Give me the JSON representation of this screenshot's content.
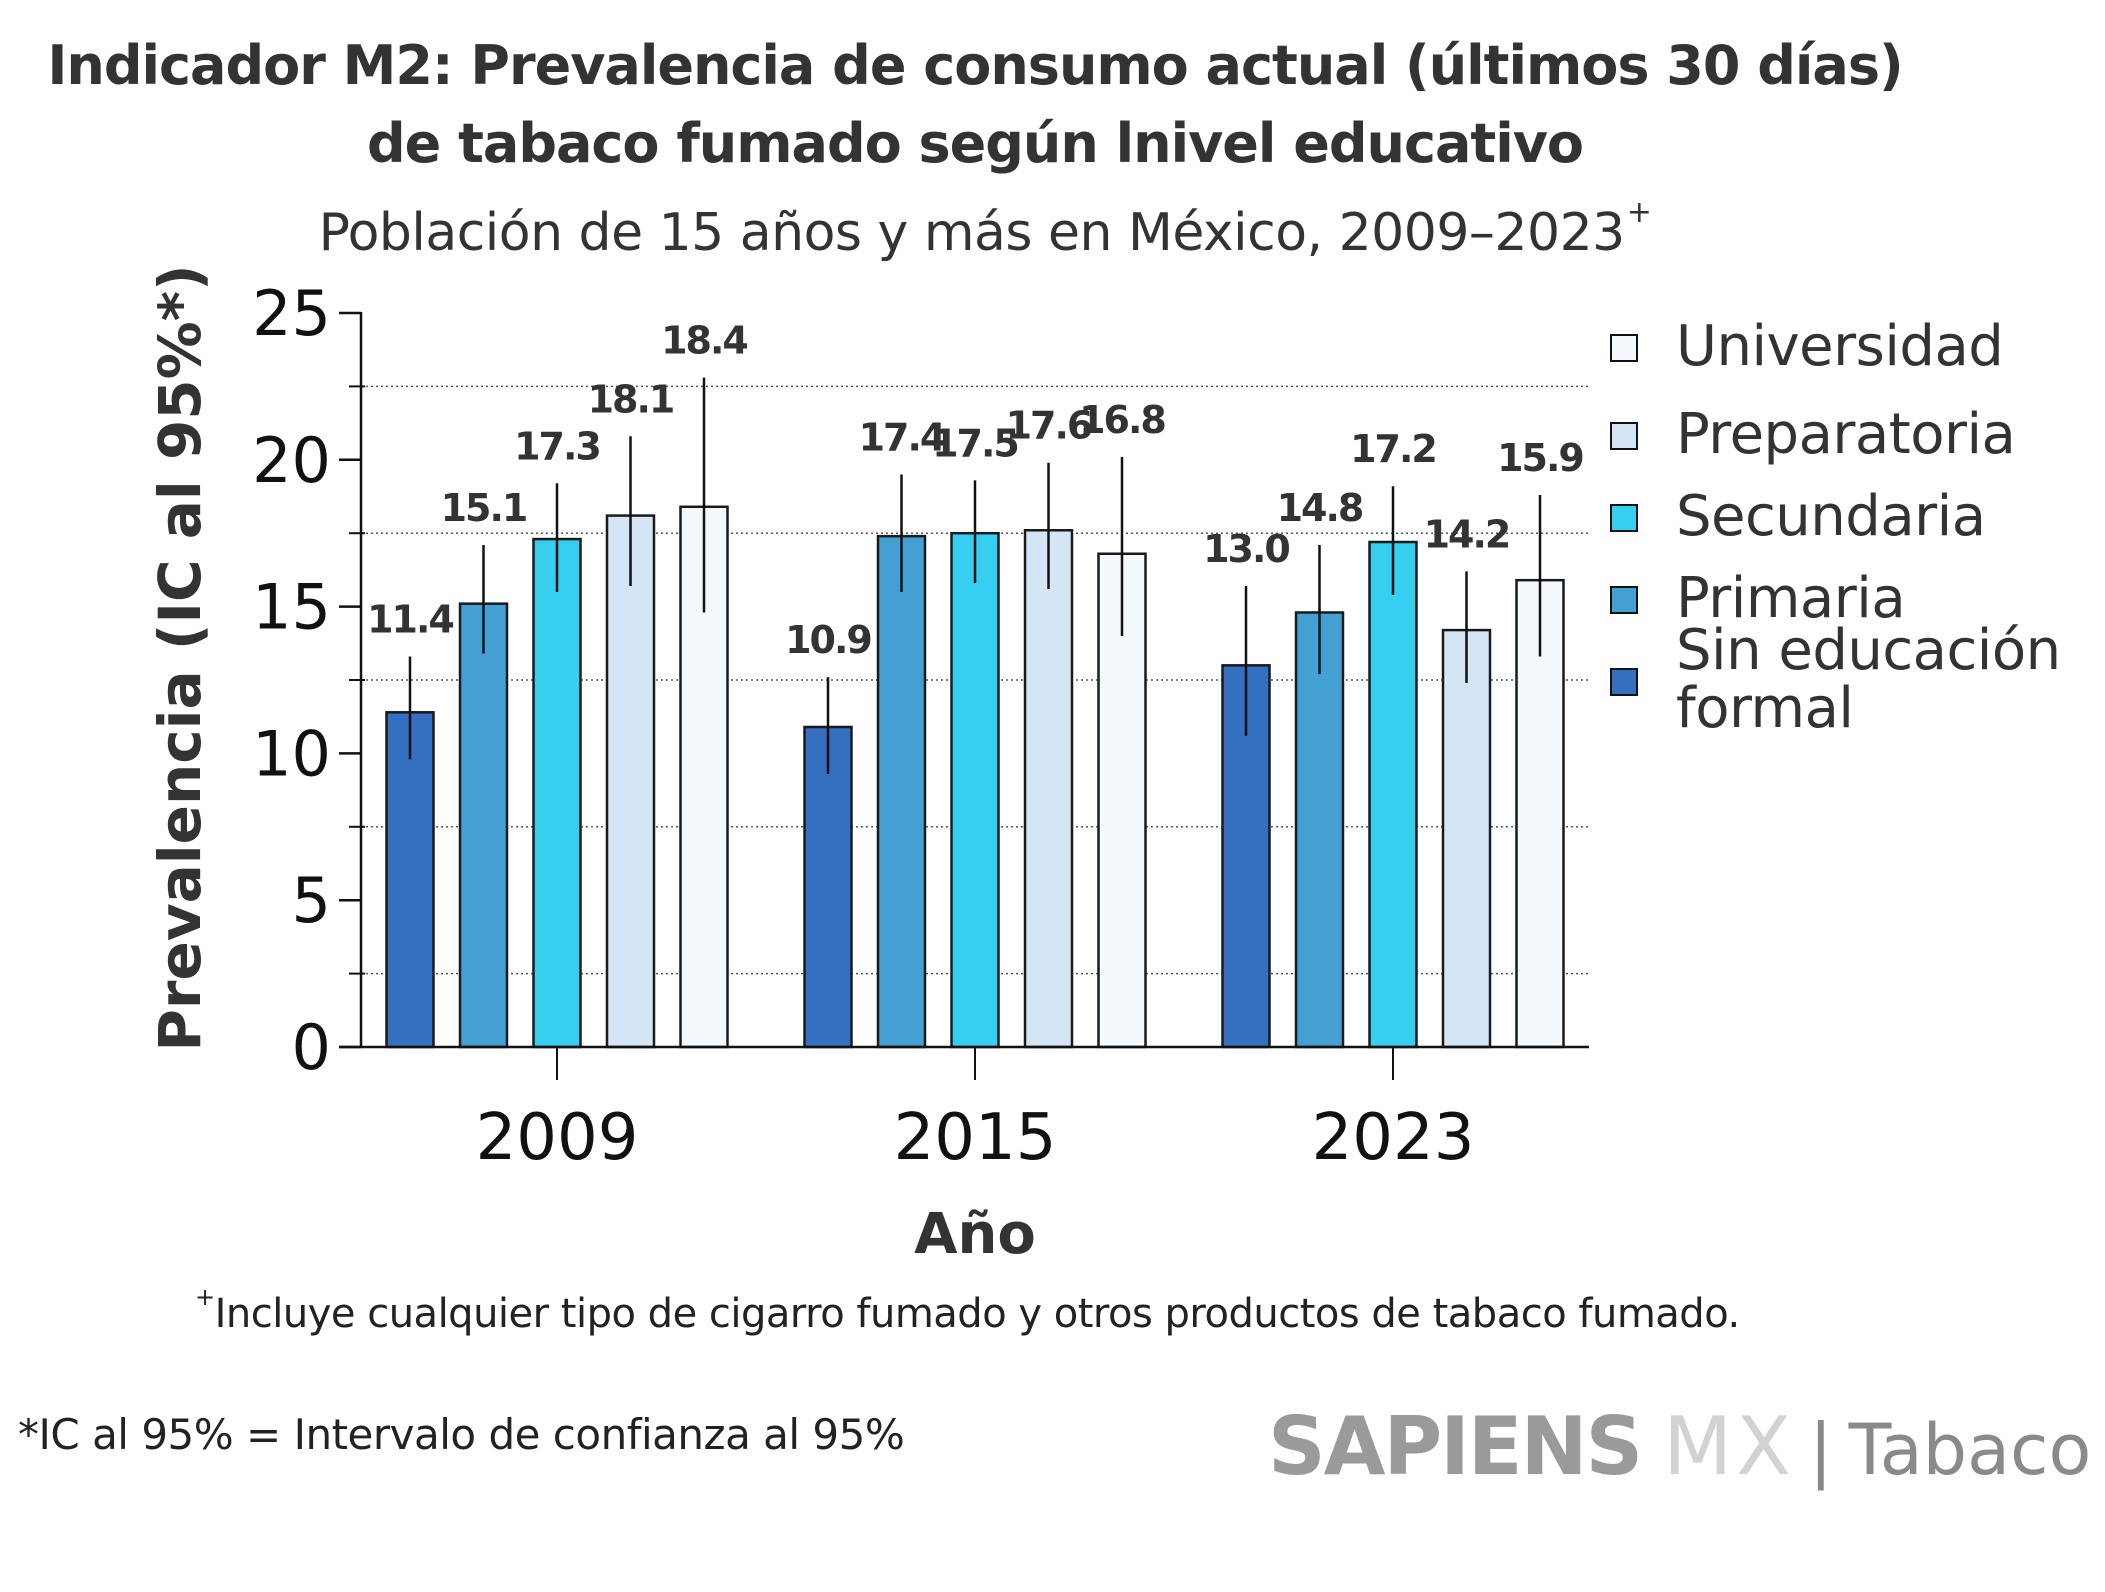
{
  "header": {
    "title_line1": "Indicador M2: Prevalencia de consumo actual (últimos 30 días)",
    "title_line2": "de tabaco fumado según lnivel educativo",
    "subtitle": "Población de 15 años y más en México, 2009–2023",
    "subtitle_sup": "+"
  },
  "chart_data": {
    "type": "bar",
    "title": "Indicador M2: Prevalencia de consumo actual (últimos 30 días) de tabaco fumado según lnivel educativo",
    "subtitle": "Población de 15 años y más en México, 2009–2023+",
    "xlabel": "Año",
    "ylabel": "Prevalencia (IC al 95%*)",
    "categories": [
      "2009",
      "2015",
      "2023"
    ],
    "ylim": [
      0,
      25
    ],
    "yticks": [
      0,
      5,
      10,
      15,
      20,
      25
    ],
    "ytick_labels": [
      "0",
      "5",
      "10",
      "15",
      "20",
      "25"
    ],
    "minor_gridlines": [
      2.5,
      7.5,
      12.5,
      17.5,
      22.5
    ],
    "grid": "dotted horizontal at minor ticks",
    "legend_position": "right",
    "series": [
      {
        "name": "Sin educación formal",
        "color": "#356fc0",
        "values": [
          11.4,
          10.9,
          13.0
        ],
        "ci_low": [
          9.8,
          9.3,
          10.6
        ],
        "ci_high": [
          13.3,
          12.6,
          15.7
        ],
        "labels": [
          "11.4",
          "10.9",
          "13.0"
        ]
      },
      {
        "name": "Primaria",
        "color": "#44a0d2",
        "values": [
          15.1,
          17.4,
          14.8
        ],
        "ci_low": [
          13.4,
          15.5,
          12.7
        ],
        "ci_high": [
          17.1,
          19.5,
          17.1
        ],
        "labels": [
          "15.1",
          "17.4",
          "14.8"
        ]
      },
      {
        "name": "Secundaria",
        "color": "#36cff0",
        "values": [
          17.3,
          17.5,
          17.2
        ],
        "ci_low": [
          15.5,
          15.8,
          15.4
        ],
        "ci_high": [
          19.2,
          19.3,
          19.1
        ],
        "labels": [
          "17.3",
          "17.5",
          "17.2"
        ]
      },
      {
        "name": "Preparatoria",
        "color": "#d4e6f6",
        "values": [
          18.1,
          17.6,
          14.2
        ],
        "ci_low": [
          15.7,
          15.6,
          12.4
        ],
        "ci_high": [
          20.8,
          19.9,
          16.2
        ],
        "labels": [
          "18.1",
          "17.6",
          "14.2"
        ]
      },
      {
        "name": "Universidad",
        "color": "#f4f9fe",
        "values": [
          18.4,
          16.8,
          15.9
        ],
        "ci_low": [
          14.8,
          14.0,
          13.3
        ],
        "ci_high": [
          22.8,
          20.1,
          18.8
        ],
        "labels": [
          "18.4",
          "16.8",
          "15.9"
        ]
      }
    ]
  },
  "legend": {
    "items": [
      {
        "label": "Universidad",
        "color": "#f4f9fe"
      },
      {
        "label": "Preparatoria",
        "color": "#d4e6f6"
      },
      {
        "label": "Secundaria",
        "color": "#36cff0"
      },
      {
        "label": "Primaria",
        "color": "#44a0d2"
      },
      {
        "label_line1": "Sin educación",
        "label_line2": "formal",
        "color": "#356fc0"
      }
    ]
  },
  "footnotes": {
    "plus_mark": "+",
    "plus_note": "Incluye cualquier tipo de cigarro fumado y otros productos de tabaco fumado.",
    "ic_note": "*IC al 95% = Intervalo de confianza al 95%"
  },
  "logo": {
    "brand": "SAPIENS",
    "mx": "MX",
    "separator": "|",
    "topic": "Tabaco"
  }
}
